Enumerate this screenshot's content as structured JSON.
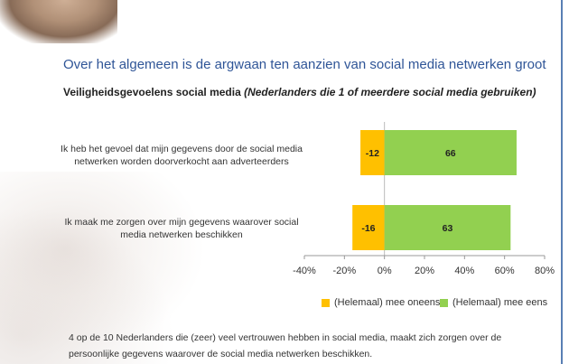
{
  "headline": "Over het algemeen is de argwaan ten aanzien van social media netwerken groot",
  "subtitle_main": "Veiligheidsgevoelens social media ",
  "subtitle_note": "(Nederlanders die 1 of meerdere social media gebruiken)",
  "footnote": "4 op de 10 Nederlanders die (zeer) veel vertrouwen hebben in social media, maakt zich zorgen over de persoonlijke gegevens waarover de social media netwerken beschikken.",
  "colors": {
    "negative": "#ffc000",
    "positive": "#92d050",
    "title": "#2f5597"
  },
  "chart_data": {
    "type": "bar",
    "orientation": "horizontal",
    "stacked": "diverging",
    "categories": [
      "Ik heb het gevoel dat mijn gegevens door de social media netwerken  worden doorverkocht aan adverteerders",
      "Ik maak me zorgen over mijn gegevens waarover social media netwerken beschikken"
    ],
    "series": [
      {
        "name": "(Helemaal) mee oneens",
        "values": [
          -12,
          -16
        ],
        "color": "#ffc000"
      },
      {
        "name": "(Helemaal) mee eens",
        "values": [
          66,
          63
        ],
        "color": "#92d050"
      }
    ],
    "xlim": [
      -40,
      80
    ],
    "xticks": [
      -40,
      -20,
      0,
      20,
      40,
      60,
      80
    ],
    "xtick_labels": [
      "-40%",
      "-20%",
      "0%",
      "20%",
      "40%",
      "60%",
      "80%"
    ],
    "data_labels": [
      [
        "-12",
        "-16"
      ],
      [
        "66",
        "63"
      ]
    ],
    "legend_position": "bottom",
    "grid": false
  }
}
